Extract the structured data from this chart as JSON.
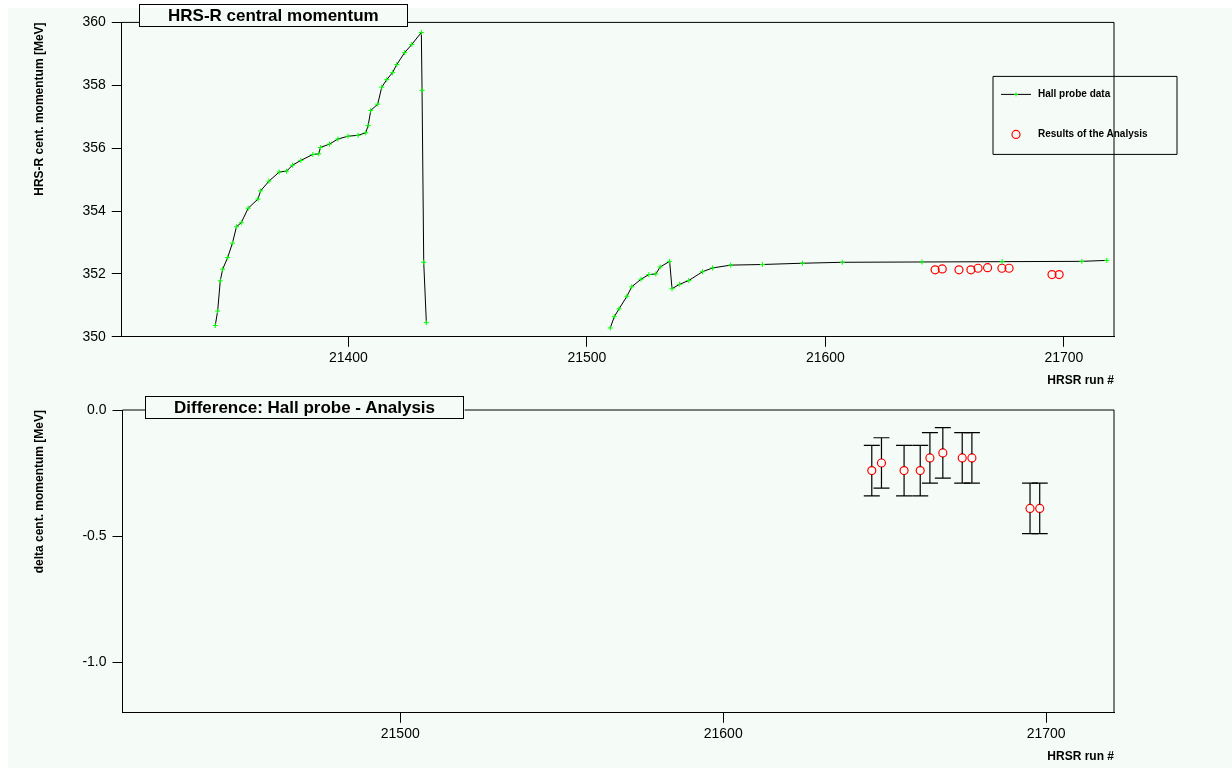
{
  "chart_data": [
    {
      "type": "line",
      "title": "HRS-R central momentum",
      "xlabel": "HRSR run #",
      "ylabel": "HRS-R cent. momentum [MeV]",
      "xlim": [
        21305,
        21721
      ],
      "xticks": [
        21400,
        21500,
        21600,
        21700
      ],
      "ylim": [
        350,
        360
      ],
      "yticks": [
        350,
        352,
        354,
        356,
        358,
        360
      ],
      "grid": false,
      "legend": "top right",
      "series": [
        {
          "name": "Hall probe data",
          "type": "line",
          "color": "#000000",
          "colors": [
            "#00ff00",
            "#00ff00",
            "#00ff00",
            "#00ff00",
            "#00ff00",
            "#00ff00",
            "#00ff00",
            "#00ff00",
            "#00ff00",
            "#00ff00",
            "#00ff00",
            "#00ff00",
            "#00ff00",
            "#00ff00",
            "#00ff00",
            "#00ff00",
            "#00ff00",
            "#00ff00",
            "#00ff00",
            "#00ff00",
            "#00ff00",
            "#00ff00",
            "#00ff00",
            "#00ff00",
            "#00ff00",
            "#00ff00",
            "#00ff00",
            "#00ff00",
            "#00ff00",
            "#00ff00",
            "#00ff00",
            "#00ff00",
            "#00ff00",
            "#00ff00",
            "#00ff00",
            "#00ff00",
            "#00ff00",
            "#00ff00",
            "#00ff00",
            "#00ff00",
            "#00ff00",
            "#00ff00",
            "#00ff00",
            "#00ff00",
            "#00ff00",
            "#00ff00",
            "#00ff00",
            "#00ff00",
            "#00ff00",
            "#00ff00",
            "#00ff00",
            "#00ff00",
            "#00ff00",
            "#00ff00",
            "#00ff00",
            "#00ff00",
            "#00ff00",
            "#00ff00",
            "#00ff00",
            "#00ff00",
            "#00ff00"
          ],
          "marker": "cross",
          "x": [
            21344.2,
            21345.2,
            21346.3,
            21347.3,
            21349.4,
            21351.4,
            21353.1,
            21355.1,
            21358.0,
            21362.1,
            21363.2,
            21366.7,
            21371.0,
            21374.1,
            21376.6,
            21380.1,
            21385.1,
            21387.6,
            21388.3,
            21392.1,
            21395.6,
            21399.9,
            21404.1,
            21407.3,
            21408.3,
            21409.4,
            21412.3,
            21414.0,
            21416.1,
            21418.5,
            21420.3,
            21423.6,
            21426.6,
            21430.6,
            21430.9,
            21431.6,
            21432.7,
            21470,
            21509.8,
            21511.5,
            21513.5,
            21516.8,
            21518.8,
            21522.7,
            21526.0,
            21528.9,
            21530.7,
            21534.7,
            21535.7,
            21538.9,
            21542.7,
            21548.5,
            21552.7,
            21560.3,
            21573.6,
            21590.4,
            21607.1,
            21640.5,
            21674.1,
            21707.5,
            21718
          ],
          "values": [
            350.36,
            350.82,
            351.78,
            352.15,
            352.52,
            352.98,
            353.5,
            353.63,
            354.09,
            354.38,
            354.64,
            354.95,
            355.24,
            355.27,
            355.46,
            355.61,
            355.8,
            355.82,
            356.02,
            356.13,
            356.29,
            356.38,
            356.41,
            356.49,
            356.72,
            357.2,
            357.4,
            357.94,
            358.18,
            358.4,
            358.66,
            359.04,
            359.3,
            359.68,
            357.84,
            352.37,
            350.45,
            null,
            350.28,
            350.64,
            350.89,
            351.29,
            351.59,
            351.83,
            351.98,
            352.0,
            352.22,
            352.4,
            351.53,
            351.67,
            351.79,
            352.07,
            352.19,
            352.28,
            352.3,
            352.34,
            352.37,
            352.38,
            352.39,
            352.4,
            352.43
          ]
        },
        {
          "name": "Results of the Analysis",
          "type": "scatter",
          "color": "#ff0000",
          "marker": "circle",
          "x": [
            21646,
            21649,
            21656,
            21661,
            21664,
            21668,
            21674,
            21677,
            21695,
            21698
          ],
          "values": [
            352.13,
            352.16,
            352.13,
            352.13,
            352.18,
            352.2,
            352.18,
            352.18,
            351.98,
            351.98
          ]
        }
      ]
    },
    {
      "type": "scatter",
      "title": "Difference: Hall probe - Analysis",
      "xlabel": "HRSR run #",
      "ylabel": "delta cent. momentum [MeV]",
      "xlim": [
        21414,
        21721
      ],
      "xticks": [
        21500,
        21600,
        21700
      ],
      "ylim": [
        -1.2,
        0
      ],
      "yticks": [
        {
          "value": 0,
          "label": "0.0"
        },
        {
          "value": -0.5,
          "label": "-0.5"
        },
        {
          "value": -1,
          "label": "-1.0"
        }
      ],
      "grid": false,
      "marker": "circle",
      "x": [
        21646,
        21649,
        21656,
        21661,
        21664,
        21668,
        21674,
        21677,
        21695,
        21698
      ],
      "series": [
        {
          "color": "#ff0000",
          "values": [
            -0.24,
            -0.21,
            -0.24,
            -0.24,
            -0.19,
            -0.17,
            -0.19,
            -0.19,
            -0.39,
            -0.39
          ],
          "errors": [
            0.1,
            0.1,
            0.1,
            0.1,
            0.1,
            0.1,
            0.1,
            0.1,
            0.1,
            0.1
          ]
        }
      ]
    }
  ]
}
